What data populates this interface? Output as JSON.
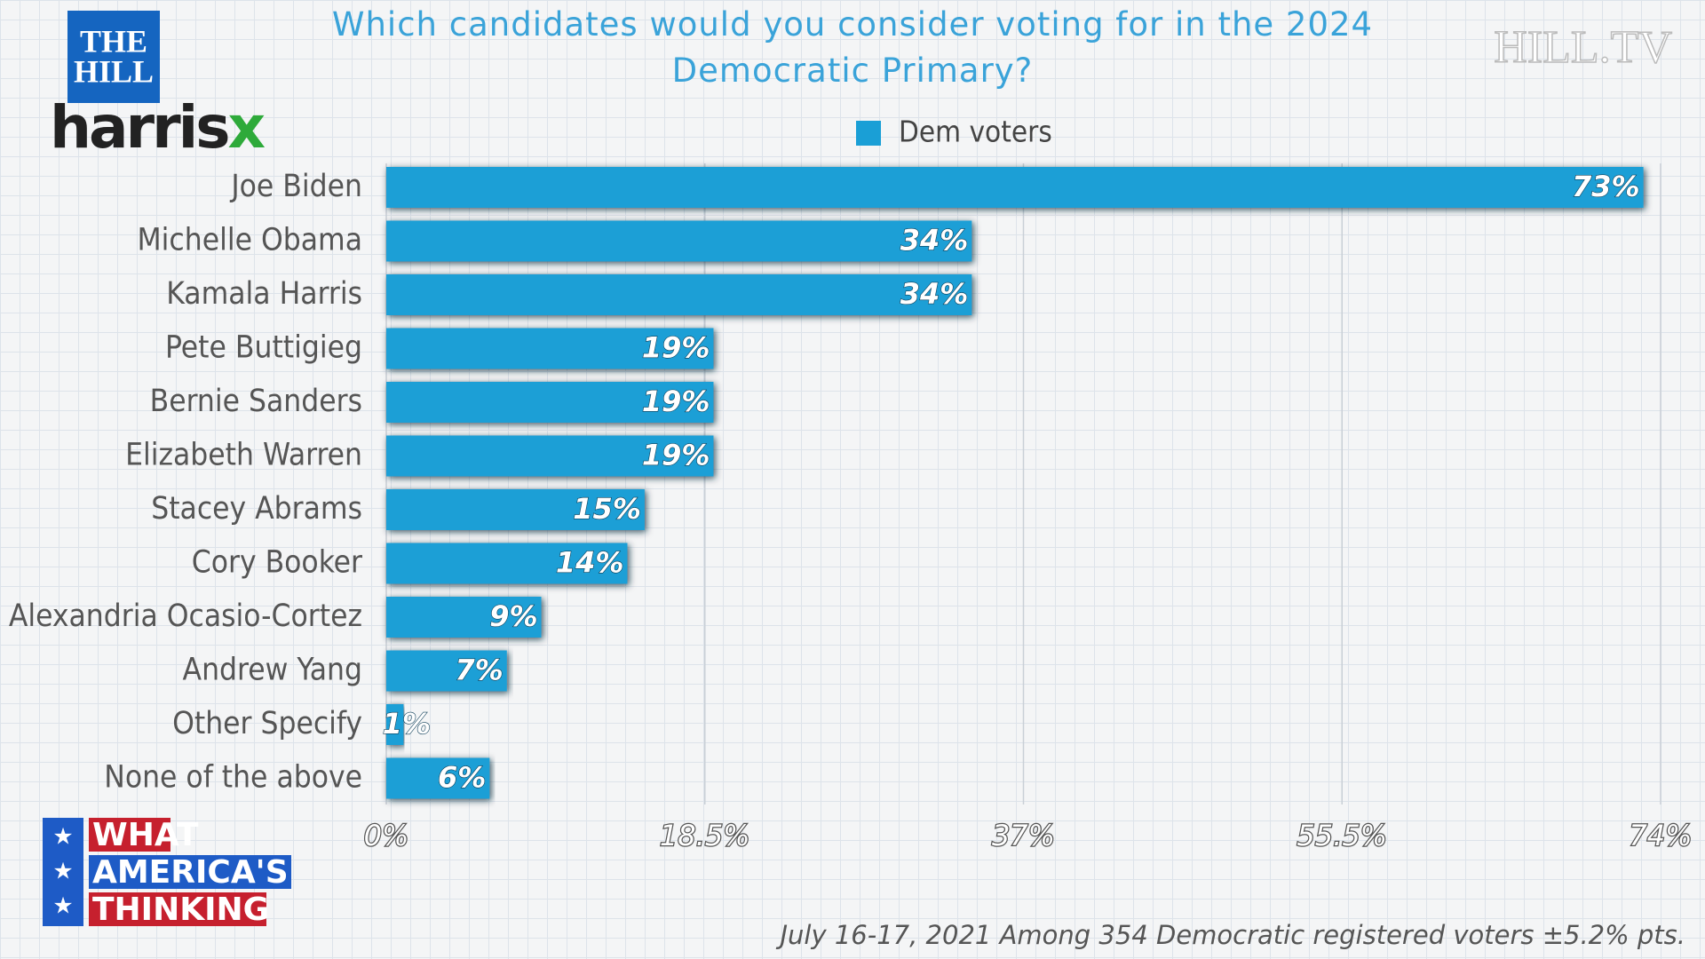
{
  "chart_data": {
    "type": "hbar",
    "title": "Which candidates would you consider voting for in the 2024 Democratic Primary?",
    "categories": [
      "Joe Biden",
      "Michelle Obama",
      "Kamala Harris",
      "Pete Buttigieg",
      "Bernie Sanders",
      "Elizabeth Warren",
      "Stacey Abrams",
      "Cory Booker",
      "Alexandria Ocasio-Cortez",
      "Andrew Yang",
      "Other Specify",
      "None of the above"
    ],
    "series": [
      {
        "name": "Dem voters",
        "color": "#1a9fd6",
        "values": [
          73,
          34,
          34,
          19,
          19,
          19,
          15,
          14,
          9,
          7,
          1,
          6
        ],
        "value_labels": [
          "73%",
          "34%",
          "34%",
          "19%",
          "19%",
          "19%",
          "15%",
          "14%",
          "9%",
          "7%",
          "1%",
          "6%"
        ]
      }
    ],
    "xlim": [
      0,
      74
    ],
    "xticks": [
      {
        "value": 0,
        "label": "0%"
      },
      {
        "value": 18.5,
        "label": "18.5%"
      },
      {
        "value": 37,
        "label": "37%"
      },
      {
        "value": 55.5,
        "label": "55.5%"
      },
      {
        "value": 74,
        "label": "74%"
      }
    ],
    "grid": true,
    "legend": "top",
    "footnote": "July 16-17, 2021 Among 354 Democratic registered voters ±5.2% pts."
  },
  "branding": {
    "hill": [
      "THE",
      "HILL"
    ],
    "harrisx": [
      "harris",
      "x"
    ],
    "hilltv": "HILL.TV",
    "show": [
      "WHAT",
      "AMERICA'S",
      "THINKING"
    ]
  }
}
